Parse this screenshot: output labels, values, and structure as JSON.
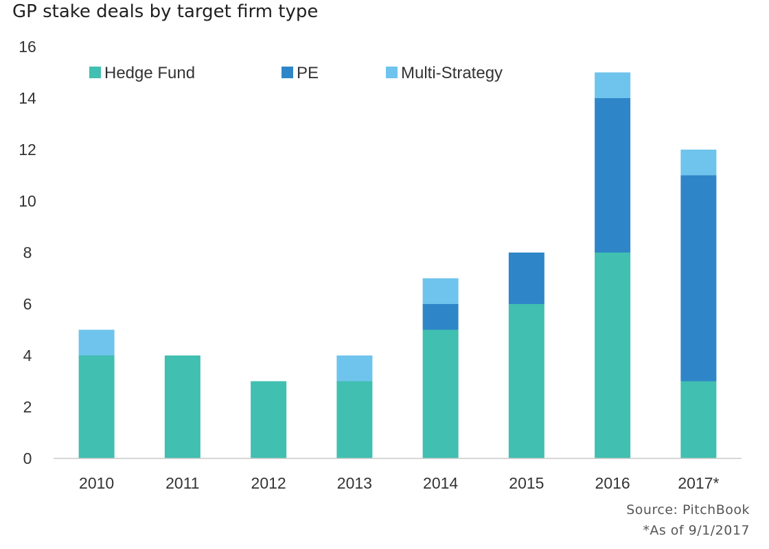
{
  "chart_data": {
    "type": "bar",
    "stacked": true,
    "title": "GP stake deals by target firm type",
    "categories": [
      "2010",
      "2011",
      "2012",
      "2013",
      "2014",
      "2015",
      "2016",
      "2017*"
    ],
    "series": [
      {
        "name": "Hedge Fund",
        "color": "#41bfb0",
        "values": [
          4,
          4,
          3,
          3,
          5,
          6,
          8,
          3
        ]
      },
      {
        "name": "PE",
        "color": "#2e86c8",
        "values": [
          0,
          0,
          0,
          0,
          1,
          2,
          6,
          8
        ]
      },
      {
        "name": "Multi-Strategy",
        "color": "#6ec4ec",
        "values": [
          1,
          0,
          0,
          1,
          1,
          0,
          1,
          1
        ]
      }
    ],
    "ylim": [
      0,
      16
    ],
    "yticks": [
      "0",
      "2",
      "4",
      "6",
      "8",
      "10",
      "12",
      "14",
      "16"
    ],
    "grid": false,
    "legend_position": "top"
  },
  "footer": {
    "source": "Source: PitchBook",
    "as_of": "*As of 9/1/2017"
  }
}
